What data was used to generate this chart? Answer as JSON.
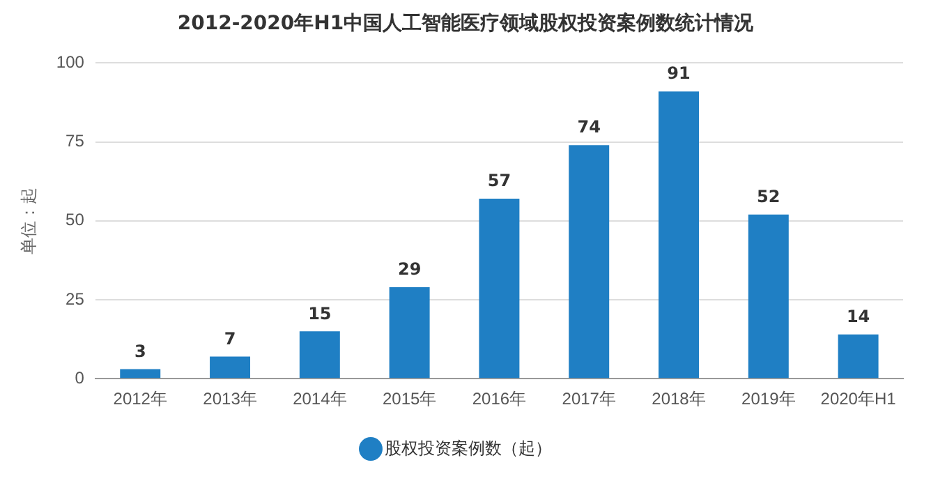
{
  "chart_data": {
    "type": "bar",
    "title": "2012-2020年H1中国人工智能医疗领域股权投资案例数统计情况",
    "ylabel": "单位：起",
    "categories": [
      "2012年",
      "2013年",
      "2014年",
      "2015年",
      "2016年",
      "2017年",
      "2018年",
      "2019年",
      "2020年H1"
    ],
    "series": [
      {
        "name": "股权投资案例数（起）",
        "color": "#1f7fc4",
        "values": [
          3,
          7,
          15,
          29,
          57,
          74,
          91,
          52,
          14
        ]
      }
    ],
    "ylim": [
      0,
      100
    ],
    "yticks": [
      0,
      25,
      50,
      75,
      100
    ],
    "grid": "y",
    "legend": "bottom",
    "data_labels": true
  }
}
